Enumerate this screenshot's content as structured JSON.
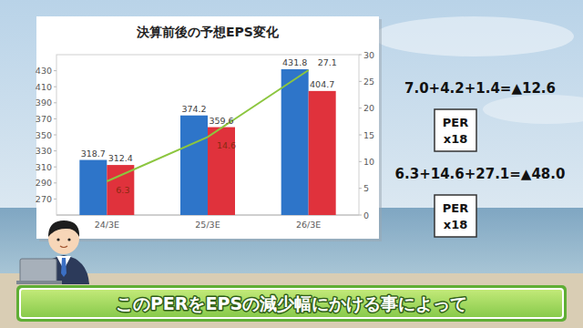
{
  "chart_data": {
    "type": "bar",
    "title": "決算前後の予想EPS変化",
    "categories": [
      "24/3E",
      "25/3E",
      "26/3E"
    ],
    "series": [
      {
        "color": "#2e75c9",
        "values": [
          318.7,
          374.2,
          431.8
        ],
        "data_labels": true
      },
      {
        "color": "#e0323c",
        "values": [
          312.4,
          359.6,
          404.7
        ],
        "data_labels": true
      },
      {
        "type": "line",
        "axis": "y2",
        "color": "#8cc63f",
        "marker": "none",
        "values": [
          6.3,
          14.6,
          27.1
        ],
        "data_labels": true
      }
    ],
    "ylim": [
      250,
      450
    ],
    "yticks": [
      270,
      290,
      310,
      330,
      350,
      370,
      390,
      410,
      430
    ],
    "y2lim": [
      0,
      30
    ],
    "y2ticks": [
      0,
      5,
      10,
      15,
      20,
      25,
      30
    ],
    "grid": false
  },
  "notes": [
    {
      "formula": "7.0+4.2+1.4=▲12.6",
      "box": [
        "PER",
        "x18"
      ]
    },
    {
      "formula": "6.3+14.6+27.1=▲48.0",
      "box": [
        "PER",
        "x18"
      ]
    }
  ],
  "caption": "このPERをEPSの減少幅にかける事によって"
}
